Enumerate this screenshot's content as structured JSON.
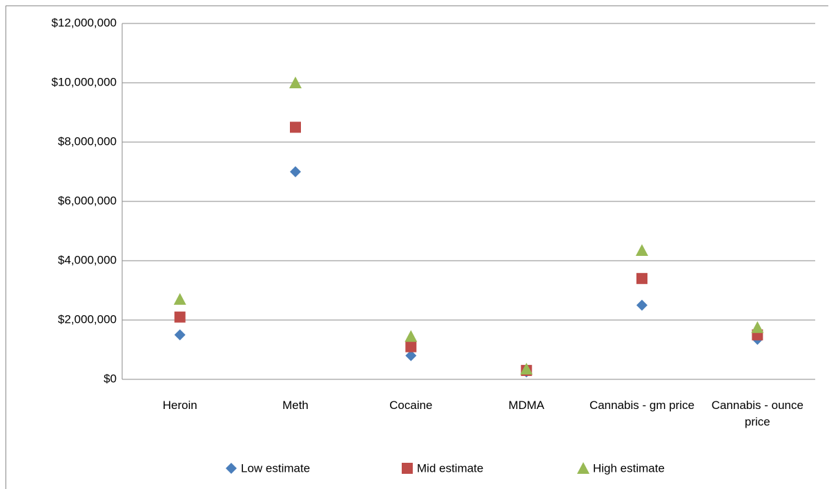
{
  "chart_data": {
    "type": "scatter",
    "categories": [
      "Heroin",
      "Meth",
      "Cocaine",
      "MDMA",
      "Cannabis - gm price",
      "Cannabis - ounce price"
    ],
    "series": [
      {
        "name": "Low estimate",
        "color": "#4a7ebb",
        "marker": "diamond",
        "values": [
          1500000,
          7000000,
          800000,
          250000,
          2500000,
          1350000
        ]
      },
      {
        "name": "Mid estimate",
        "color": "#be4b48",
        "marker": "square",
        "values": [
          2100000,
          8500000,
          1100000,
          300000,
          3400000,
          1500000
        ]
      },
      {
        "name": "High estimate",
        "color": "#98b954",
        "marker": "triangle",
        "values": [
          2700000,
          10000000,
          1450000,
          350000,
          4350000,
          1750000
        ]
      }
    ],
    "ylim": [
      0,
      12000000
    ],
    "yticks": [
      {
        "value": 0,
        "label": "$0"
      },
      {
        "value": 2000000,
        "label": "$2,000,000"
      },
      {
        "value": 4000000,
        "label": "$4,000,000"
      },
      {
        "value": 6000000,
        "label": "$6,000,000"
      },
      {
        "value": 8000000,
        "label": "$8,000,000"
      },
      {
        "value": 10000000,
        "label": "$10,000,000"
      },
      {
        "value": 12000000,
        "label": "$12,000,000"
      }
    ],
    "grid": true,
    "legend": "bottom"
  }
}
